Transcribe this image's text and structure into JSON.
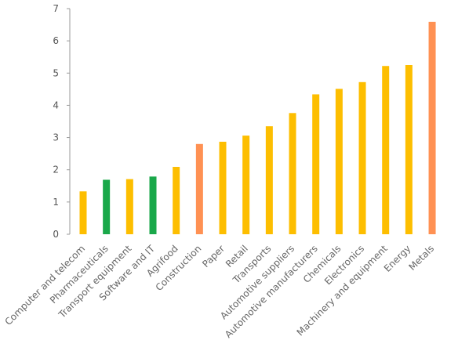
{
  "chart_data": {
    "type": "bar",
    "title": "",
    "xlabel": "",
    "ylabel": "",
    "ylim": [
      0,
      7
    ],
    "yticks": [
      0,
      1,
      2,
      3,
      4,
      5,
      6,
      7
    ],
    "grid": false,
    "legend": "none",
    "categories": [
      "Computer and telecom",
      "Pharmaceuticals",
      "Transport equipment",
      "Software and IT",
      "Agrifood",
      "Construction",
      "Paper",
      "Retail",
      "Transports",
      "Automotive suppliers",
      "Automotive manufacturers",
      "Chemicals",
      "Electronics",
      "Machinery and equipment",
      "Energy",
      "Metals"
    ],
    "values": [
      1.33,
      1.69,
      1.71,
      1.79,
      2.09,
      2.8,
      2.87,
      3.06,
      3.35,
      3.76,
      4.34,
      4.51,
      4.72,
      5.22,
      5.25,
      6.59
    ],
    "colors": [
      "#FDBE00",
      "#1AA84A",
      "#FDBE00",
      "#1AA84A",
      "#FDBE00",
      "#FF9153",
      "#FDBE00",
      "#FDBE00",
      "#FDBE00",
      "#FDBE00",
      "#FDBE00",
      "#FDBE00",
      "#FDBE00",
      "#FDBE00",
      "#FDBE00",
      "#FF9153"
    ]
  }
}
